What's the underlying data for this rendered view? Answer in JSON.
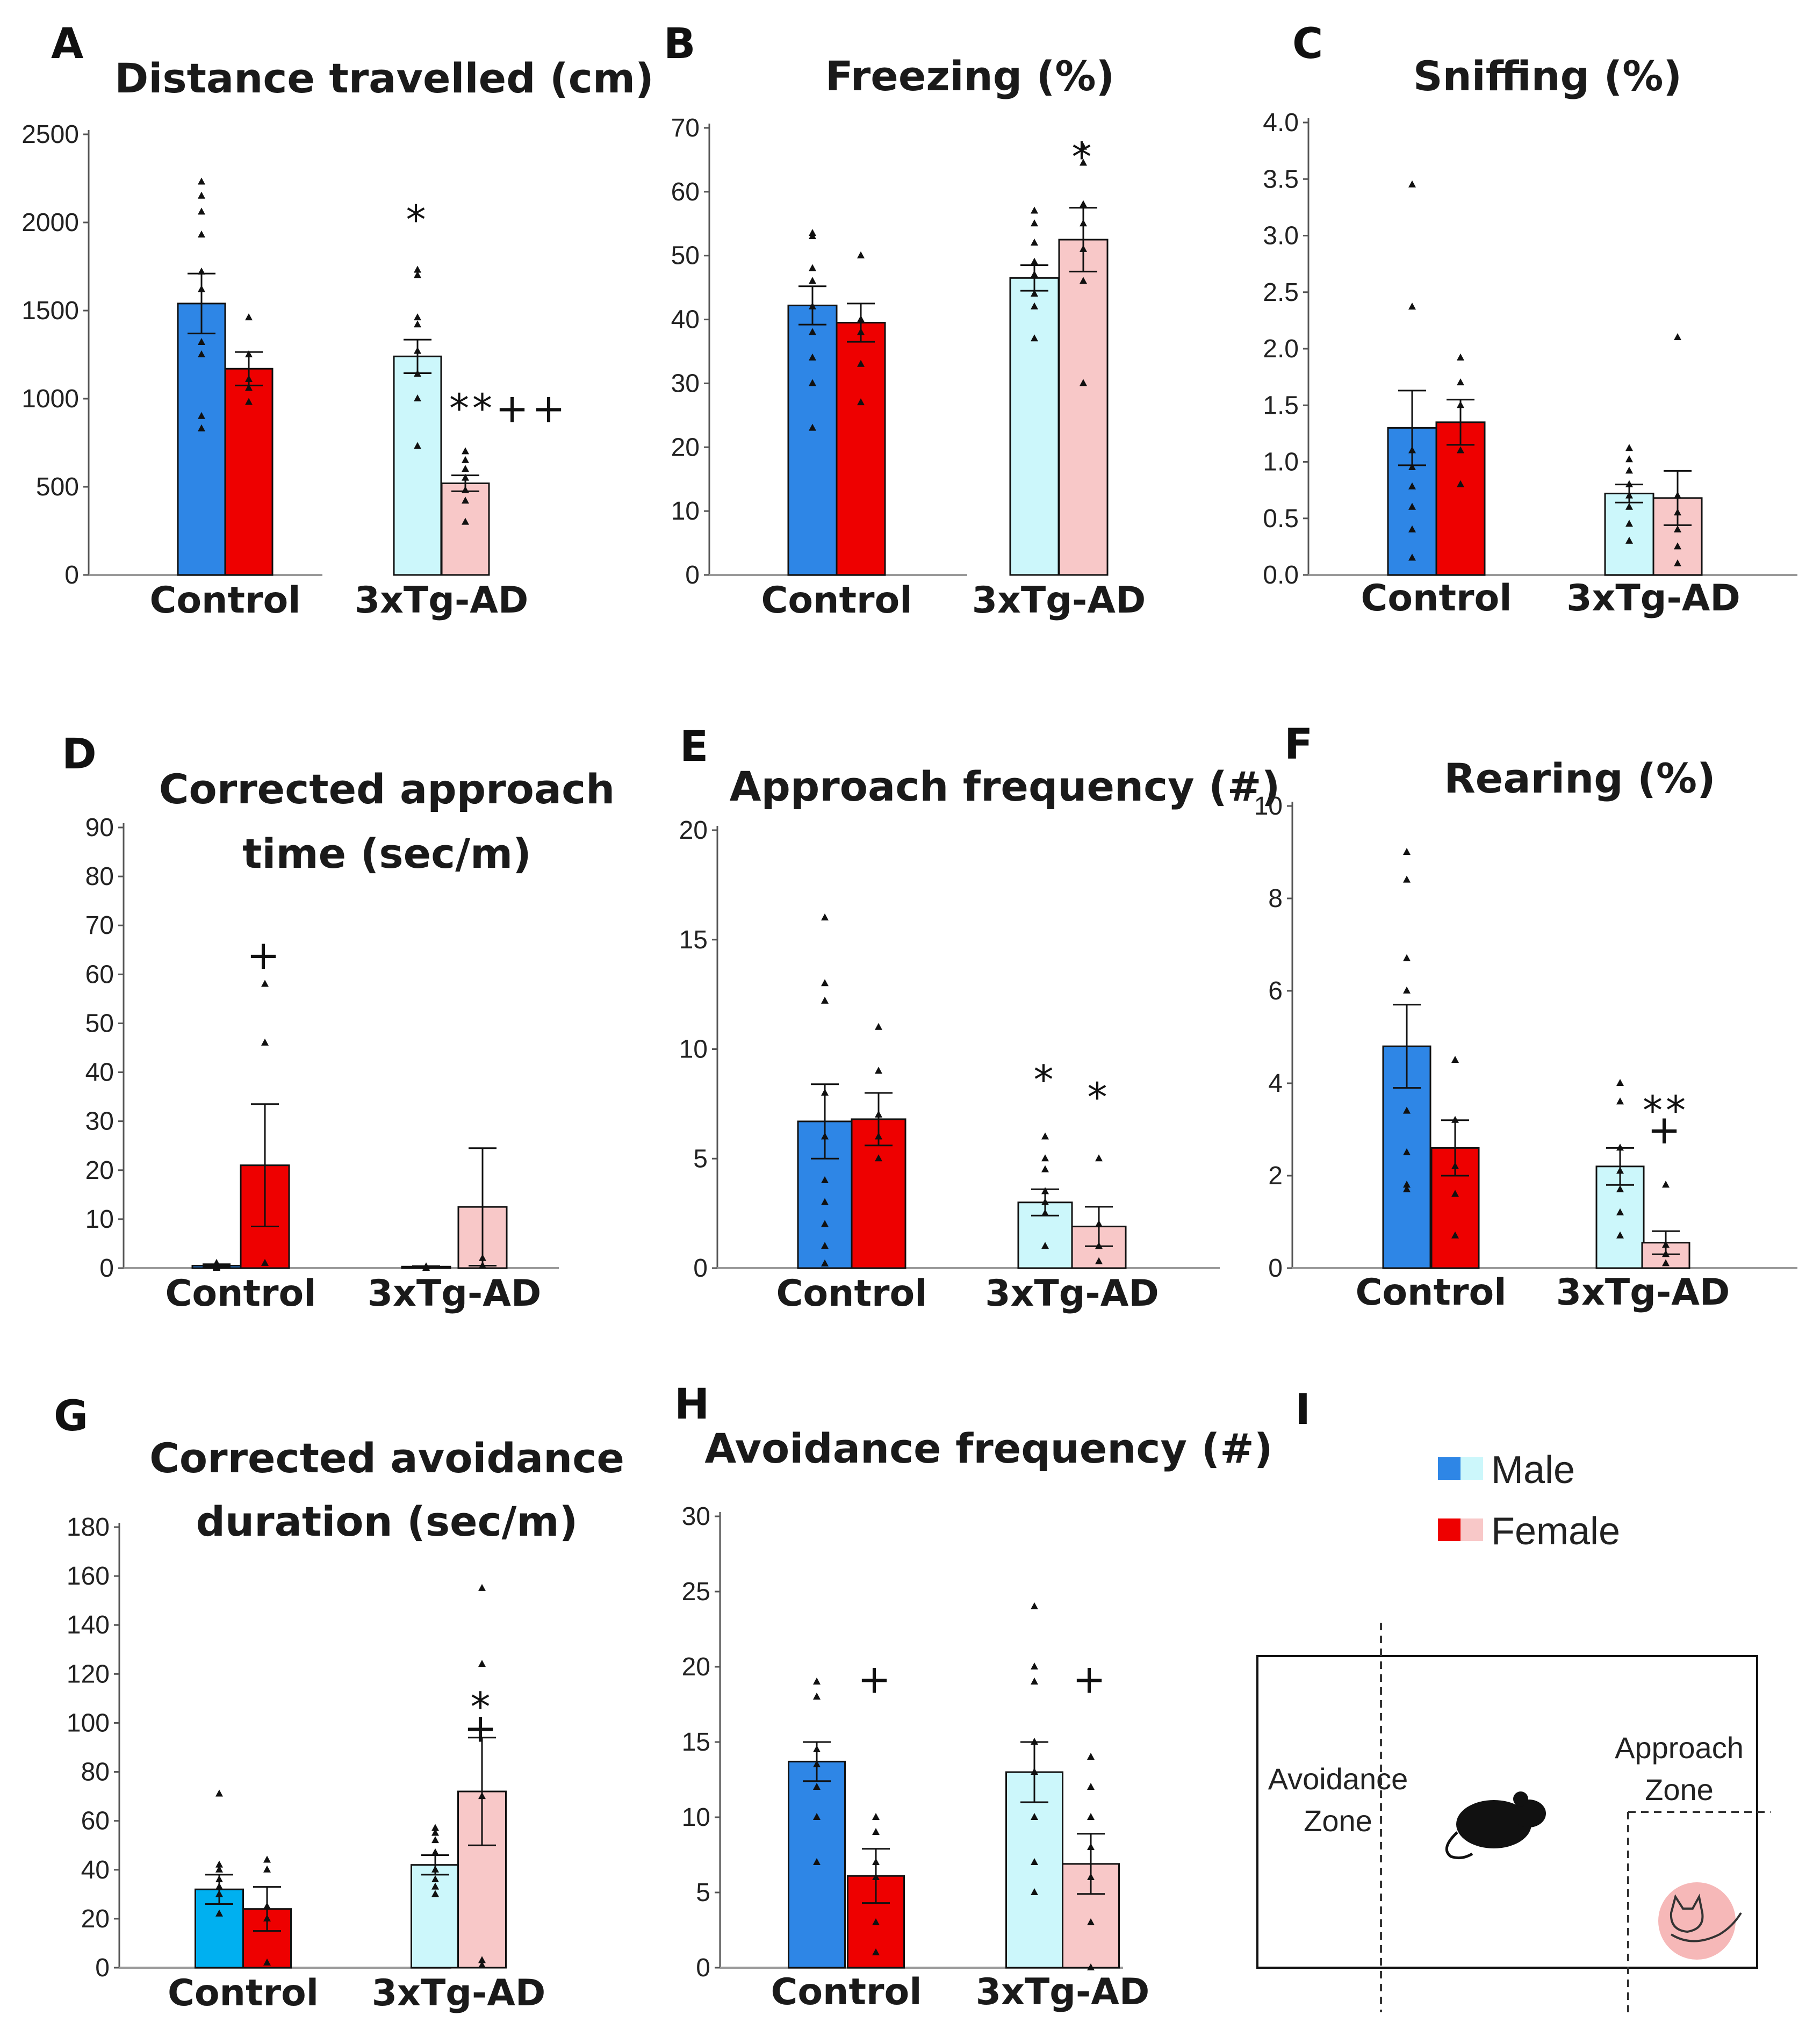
{
  "colors": {
    "ctrl_male": "#2e86e6",
    "ctrl_female": "#ee0000",
    "tg_male": "#ccf7fb",
    "tg_female": "#f8c8c8",
    "ctrl_male_G": "#00b0f0"
  },
  "legend": {
    "male": "Male",
    "female": "Female"
  },
  "schematic": {
    "letter": "I",
    "avoidance_line1": "Avoidance",
    "avoidance_line2": "Zone",
    "approach_line1": "Approach",
    "approach_line2": "Zone",
    "mouse_icon": "mouse-icon",
    "cat_icon": "cat-icon"
  },
  "chart_data": [
    {
      "letter": "A",
      "type": "bar",
      "title": [
        "Distance travelled (cm)"
      ],
      "categories": [
        "Control",
        "3xTg-AD"
      ],
      "ylim": [
        0,
        2500
      ],
      "yticks": [
        "0",
        "500",
        "1000",
        "1500",
        "2000",
        "2500"
      ],
      "bars": [
        {
          "group": "Control",
          "sex": "Male",
          "value": 1540,
          "sem": 170,
          "points": [
            2230,
            2150,
            2060,
            1930,
            1720,
            1620,
            1320,
            1250,
            900,
            830
          ]
        },
        {
          "group": "Control",
          "sex": "Female",
          "value": 1170,
          "sem": 95,
          "points": [
            1460,
            1250,
            1110,
            1060,
            980
          ]
        },
        {
          "group": "3xTg-AD",
          "sex": "Male",
          "value": 1240,
          "sem": 95,
          "points": [
            1730,
            1700,
            1460,
            1420,
            1270,
            1140,
            1000,
            730
          ]
        },
        {
          "group": "3xTg-AD",
          "sex": "Female",
          "value": 520,
          "sem": 45,
          "points": [
            700,
            650,
            600,
            550,
            480,
            420,
            300
          ]
        }
      ],
      "annotations": [
        {
          "bar": 2,
          "text": "*",
          "value": 2090
        },
        {
          "bar": 3,
          "text": "**++",
          "value": 1020
        }
      ]
    },
    {
      "letter": "B",
      "type": "bar",
      "title": [
        "Freezing (%)"
      ],
      "categories": [
        "Control",
        "3xTg-AD"
      ],
      "ylim": [
        0,
        70
      ],
      "yticks": [
        "0",
        "10",
        "20",
        "30",
        "40",
        "50",
        "60",
        "70"
      ],
      "bars": [
        {
          "group": "Control",
          "sex": "Male",
          "value": 42.2,
          "sem": 3.0,
          "points": [
            53.5,
            53,
            48,
            46,
            42,
            38,
            34,
            30,
            23
          ]
        },
        {
          "group": "Control",
          "sex": "Female",
          "value": 39.5,
          "sem": 3.0,
          "points": [
            50,
            40,
            38,
            33,
            27
          ]
        },
        {
          "group": "3xTg-AD",
          "sex": "Male",
          "value": 46.5,
          "sem": 2.0,
          "points": [
            57,
            55,
            52,
            49,
            47,
            44,
            42,
            37
          ]
        },
        {
          "group": "3xTg-AD",
          "sex": "Female",
          "value": 52.5,
          "sem": 5.0,
          "points": [
            67,
            64.5,
            58,
            55,
            51,
            46,
            30
          ]
        }
      ],
      "annotations": [
        {
          "bar": 3,
          "text": "*",
          "value": 67.5
        }
      ]
    },
    {
      "letter": "C",
      "type": "bar",
      "title": [
        "Sniffing (%)"
      ],
      "categories": [
        "Control",
        "3xTg-AD"
      ],
      "ylim": [
        0,
        4.0
      ],
      "yticks": [
        "0.0",
        "0.5",
        "1.0",
        "1.5",
        "2.0",
        "2.5",
        "3.0",
        "3.5",
        "4.0"
      ],
      "bars": [
        {
          "group": "Control",
          "sex": "Male",
          "value": 1.3,
          "sem": 0.33,
          "points": [
            3.45,
            2.37,
            1.1,
            0.95,
            0.78,
            0.6,
            0.4,
            0.15
          ]
        },
        {
          "group": "Control",
          "sex": "Female",
          "value": 1.35,
          "sem": 0.2,
          "points": [
            1.92,
            1.7,
            1.5,
            1.1,
            0.8
          ]
        },
        {
          "group": "3xTg-AD",
          "sex": "Male",
          "value": 0.72,
          "sem": 0.08,
          "points": [
            1.12,
            1.02,
            0.92,
            0.8,
            0.7,
            0.6,
            0.45,
            0.3
          ]
        },
        {
          "group": "3xTg-AD",
          "sex": "Female",
          "value": 0.68,
          "sem": 0.24,
          "points": [
            2.1,
            0.7,
            0.55,
            0.4,
            0.25,
            0.1
          ]
        }
      ],
      "annotations": []
    },
    {
      "letter": "D",
      "type": "bar",
      "title": [
        "Corrected  approach",
        "time  (sec/m)"
      ],
      "categories": [
        "Control",
        "3xTg-AD"
      ],
      "ylim": [
        0,
        90
      ],
      "yticks": [
        "0",
        "10",
        "20",
        "30",
        "40",
        "50",
        "60",
        "70",
        "80",
        "90"
      ],
      "bars": [
        {
          "group": "Control",
          "sex": "Male",
          "value": 0.5,
          "sem": 0.3,
          "points": [
            1,
            0.5,
            0.3,
            0.2,
            0
          ]
        },
        {
          "group": "Control",
          "sex": "Female",
          "value": 21,
          "sem": 12.5,
          "points": [
            58,
            46,
            1
          ]
        },
        {
          "group": "3xTg-AD",
          "sex": "Male",
          "value": 0.3,
          "sem": 0.1,
          "points": [
            0.3,
            0
          ]
        },
        {
          "group": "3xTg-AD",
          "sex": "Female",
          "value": 12.5,
          "sem": 12,
          "points": [
            2,
            0.5
          ]
        }
      ],
      "annotations": [
        {
          "bar": 1,
          "text": "+",
          "value": 64
        }
      ]
    },
    {
      "letter": "E",
      "type": "bar",
      "title": [
        "Approach  frequency  (#)"
      ],
      "categories": [
        "Control",
        "3xTg-AD"
      ],
      "ylim": [
        0,
        20
      ],
      "yticks": [
        "0",
        "5",
        "10",
        "15",
        "20"
      ],
      "bars": [
        {
          "group": "Control",
          "sex": "Male",
          "value": 6.7,
          "sem": 1.7,
          "points": [
            16,
            13,
            12.2,
            8,
            6,
            4,
            3,
            2,
            1,
            0.2
          ]
        },
        {
          "group": "Control",
          "sex": "Female",
          "value": 6.8,
          "sem": 1.2,
          "points": [
            11,
            9,
            7,
            6,
            5
          ]
        },
        {
          "group": "3xTg-AD",
          "sex": "Male",
          "value": 3.0,
          "sem": 0.6,
          "points": [
            6,
            5,
            4.5,
            3.5,
            3,
            2.5,
            1
          ]
        },
        {
          "group": "3xTg-AD",
          "sex": "Female",
          "value": 1.9,
          "sem": 0.9,
          "points": [
            5,
            2,
            1,
            0.3
          ]
        }
      ],
      "annotations": [
        {
          "bar": 2,
          "text": "*",
          "value": 9.2
        },
        {
          "bar": 3,
          "text": "*",
          "value": 8.4
        }
      ]
    },
    {
      "letter": "F",
      "type": "bar",
      "title": [
        "Rearing (%)"
      ],
      "categories": [
        "Control",
        "3xTg-AD"
      ],
      "ylim": [
        0,
        10
      ],
      "yticks": [
        "0",
        "2",
        "4",
        "6",
        "8",
        "10"
      ],
      "bars": [
        {
          "group": "Control",
          "sex": "Male",
          "value": 4.8,
          "sem": 0.9,
          "points": [
            9,
            8.4,
            6.7,
            6,
            3.4,
            2.5,
            1.8,
            1.7
          ]
        },
        {
          "group": "Control",
          "sex": "Female",
          "value": 2.6,
          "sem": 0.6,
          "points": [
            4.5,
            3.2,
            2.2,
            1.6,
            0.7
          ]
        },
        {
          "group": "3xTg-AD",
          "sex": "Male",
          "value": 2.2,
          "sem": 0.4,
          "points": [
            4,
            3.6,
            2.6,
            2.1,
            1.7,
            1.2,
            0.7
          ]
        },
        {
          "group": "3xTg-AD",
          "sex": "Female",
          "value": 0.55,
          "sem": 0.25,
          "points": [
            1.8,
            0.5,
            0.3,
            0.1
          ]
        }
      ],
      "annotations": [
        {
          "bar": 3,
          "text": "**",
          "value": 3.7
        },
        {
          "bar": 3,
          "text": "+",
          "value": 3.0
        }
      ]
    },
    {
      "letter": "G",
      "type": "bar",
      "title": [
        "Corrected  avoidance",
        "duration  (sec/m)"
      ],
      "categories": [
        "Control",
        "3xTg-AD"
      ],
      "ylim": [
        0,
        180
      ],
      "yticks": [
        "0",
        "20",
        "40",
        "60",
        "80",
        "100",
        "120",
        "140",
        "160",
        "180"
      ],
      "bars": [
        {
          "group": "Control",
          "sex": "Male",
          "value": 32,
          "sem": 6,
          "points": [
            71,
            42,
            40,
            36,
            33,
            30,
            22
          ]
        },
        {
          "group": "Control",
          "sex": "Female",
          "value": 24,
          "sem": 9,
          "points": [
            44,
            40,
            25,
            20,
            2
          ]
        },
        {
          "group": "3xTg-AD",
          "sex": "Male",
          "value": 42,
          "sem": 4,
          "points": [
            57,
            55,
            52,
            47,
            40,
            36,
            33,
            30
          ]
        },
        {
          "group": "3xTg-AD",
          "sex": "Female",
          "value": 72,
          "sem": 22,
          "points": [
            155,
            124,
            70,
            3,
            1
          ]
        }
      ],
      "annotations": [
        {
          "bar": 3,
          "text": "*",
          "value": 112
        },
        {
          "bar": 3,
          "text": "+",
          "value": 98
        }
      ]
    },
    {
      "letter": "H",
      "type": "bar",
      "title": [
        "Avoidance  frequency  (#)"
      ],
      "categories": [
        "Control",
        "3xTg-AD"
      ],
      "ylim": [
        0,
        30
      ],
      "yticks": [
        "0",
        "5",
        "10",
        "15",
        "20",
        "25",
        "30"
      ],
      "bars": [
        {
          "group": "Control",
          "sex": "Male",
          "value": 13.7,
          "sem": 1.3,
          "points": [
            19,
            18,
            14.5,
            13.5,
            12,
            10,
            7
          ]
        },
        {
          "group": "Control",
          "sex": "Female",
          "value": 6.1,
          "sem": 1.8,
          "points": [
            10,
            9,
            7,
            6,
            3,
            1
          ]
        },
        {
          "group": "3xTg-AD",
          "sex": "Male",
          "value": 13.0,
          "sem": 2.0,
          "points": [
            24,
            20,
            19,
            15,
            13,
            10,
            7,
            5
          ]
        },
        {
          "group": "3xTg-AD",
          "sex": "Female",
          "value": 6.9,
          "sem": 2.0,
          "points": [
            14,
            12,
            10,
            8,
            6,
            3,
            0
          ]
        }
      ],
      "annotations": [
        {
          "bar": 1,
          "text": "+",
          "value": 19.2
        },
        {
          "bar": 3,
          "text": "+",
          "value": 19.2
        }
      ]
    }
  ]
}
